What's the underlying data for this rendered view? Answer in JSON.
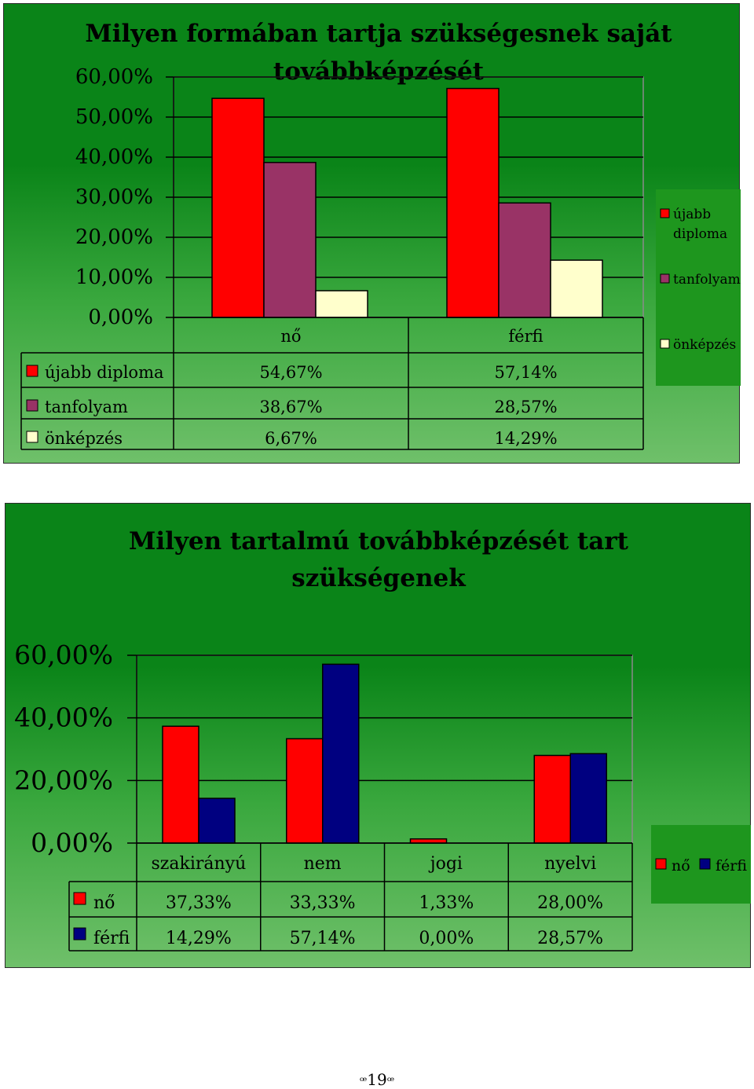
{
  "chart_data": [
    {
      "type": "bar",
      "title": "Milyen formában tartja szükségesnek saját továbbképzését",
      "title_lines": [
        "Milyen formában tartja szükségesnek saját",
        "továbbképzését"
      ],
      "categories": [
        "nő",
        "férfi"
      ],
      "series": [
        {
          "name": "újabb diploma",
          "values": [
            54.67,
            57.14
          ],
          "labels": [
            "54,67%",
            "57,14%"
          ],
          "color": "#ff0000"
        },
        {
          "name": "tanfolyam",
          "values": [
            38.67,
            28.57
          ],
          "labels": [
            "38,67%",
            "28,57%"
          ],
          "color": "#993366"
        },
        {
          "name": "önképzés",
          "values": [
            6.67,
            14.29
          ],
          "labels": [
            "6,67%",
            "14,29%"
          ],
          "color": "#ffffcc"
        }
      ],
      "legend_names": [
        "újabb",
        "diploma",
        "tanfolyam",
        "önképzés"
      ],
      "y_ticks": [
        "0,00%",
        "10,00%",
        "20,00%",
        "30,00%",
        "40,00%",
        "50,00%",
        "60,00%"
      ],
      "ylim": [
        0,
        60
      ],
      "grid": true,
      "legend_position": "right",
      "data_table": true
    },
    {
      "type": "bar",
      "title": "Milyen tartalmú továbbképzését tart szükségenek",
      "title_lines": [
        "Milyen tartalmú továbbképzését tart",
        "szükségenek"
      ],
      "categories": [
        "szakirányú",
        "nem",
        "jogi",
        "nyelvi"
      ],
      "series": [
        {
          "name": "nő",
          "values": [
            37.33,
            33.33,
            1.33,
            28.0
          ],
          "labels": [
            "37,33%",
            "33,33%",
            "1,33%",
            "28,00%"
          ],
          "color": "#ff0000"
        },
        {
          "name": "férfi",
          "values": [
            14.29,
            57.14,
            0.0,
            28.57
          ],
          "labels": [
            "14,29%",
            "57,14%",
            "0,00%",
            "28,57%"
          ],
          "color": "#000080"
        }
      ],
      "y_ticks": [
        "0,00%",
        "20,00%",
        "40,00%",
        "60,00%"
      ],
      "ylim": [
        0,
        60
      ],
      "grid": true,
      "legend_position": "right",
      "data_table": true
    }
  ],
  "page": {
    "number": "19",
    "left_ornament": "ꟹ",
    "right_ornament": "ꟹ"
  }
}
